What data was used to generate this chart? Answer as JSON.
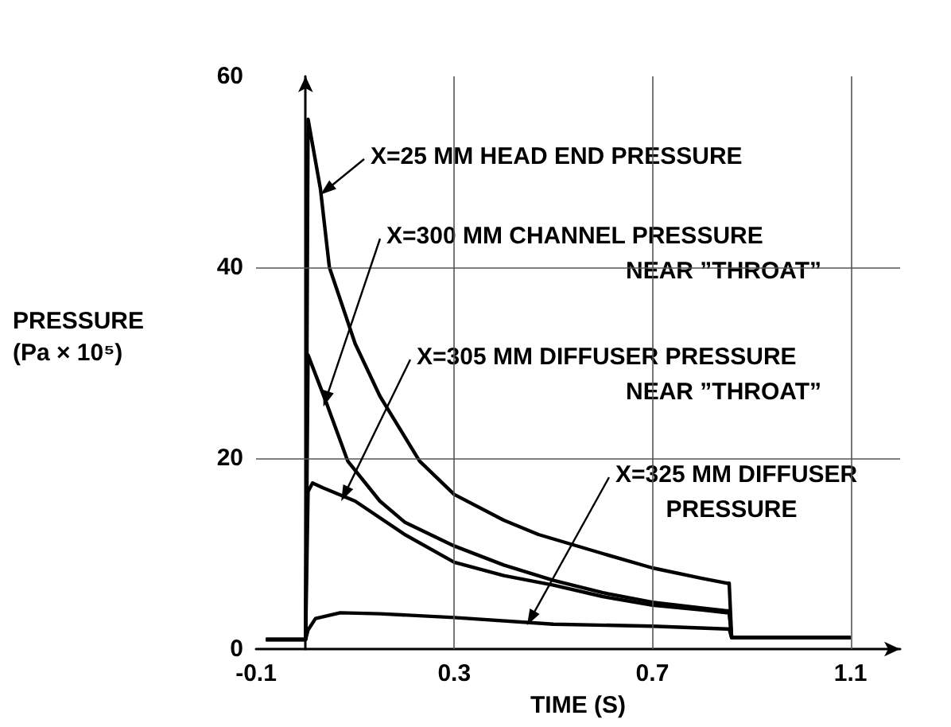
{
  "chart_data": {
    "type": "line",
    "xlabel": "TIME (S)",
    "ylabel": "PRESSURE\n(Pa × 10⁵)",
    "xlim": [
      -0.1,
      1.2
    ],
    "xticks": [
      -0.1,
      0.3,
      0.7,
      1.1
    ],
    "ylim": [
      0,
      60
    ],
    "yticks": [
      0,
      20,
      40,
      60
    ],
    "grid": true,
    "marker": "none",
    "line_style": "solid",
    "series": [
      {
        "color": "#000000",
        "x": [
          -0.08,
          0.0,
          0.005,
          0.03,
          0.048,
          0.1,
          0.15,
          0.23,
          0.3,
          0.4,
          0.47,
          0.6,
          0.7,
          0.8,
          0.85,
          0.855,
          0.86,
          1.1
        ],
        "values": [
          1.0,
          1.0,
          55.5,
          48.2,
          40,
          32,
          26.5,
          19.7,
          16.2,
          13.5,
          12,
          10,
          8.5,
          7.4,
          6.9,
          6.9,
          1.2,
          1.2
        ]
      },
      {
        "color": "#000000",
        "x": [
          -0.08,
          0.0,
          0.005,
          0.042,
          0.085,
          0.15,
          0.2,
          0.3,
          0.4,
          0.5,
          0.6,
          0.7,
          0.8,
          0.85,
          0.855,
          0.86,
          1.1
        ],
        "values": [
          1.0,
          1.0,
          30.8,
          25.8,
          19.7,
          15.5,
          13.3,
          10.8,
          8.8,
          7.2,
          5.9,
          4.9,
          4.3,
          4.0,
          4.0,
          1.2,
          1.2
        ]
      },
      {
        "color": "#000000",
        "x": [
          -0.08,
          0.0,
          0.005,
          0.014,
          0.035,
          0.1,
          0.2,
          0.3,
          0.4,
          0.5,
          0.6,
          0.7,
          0.8,
          0.85,
          0.855,
          0.86,
          1.1
        ],
        "values": [
          1.0,
          1.0,
          16.5,
          17.4,
          16.9,
          15.5,
          12,
          9.1,
          7.7,
          6.7,
          5.5,
          4.6,
          4.1,
          3.8,
          3.8,
          1.2,
          1.2
        ]
      },
      {
        "color": "#000000",
        "x": [
          -0.08,
          0.0,
          0.005,
          0.02,
          0.07,
          0.15,
          0.3,
          0.5,
          0.7,
          0.85,
          0.855,
          0.86,
          1.1
        ],
        "values": [
          1.0,
          1.0,
          2.0,
          3.2,
          3.8,
          3.7,
          3.3,
          2.6,
          2.4,
          2.1,
          2.1,
          1.2,
          1.2
        ]
      }
    ],
    "annotations": [
      {
        "text": "X=25 MM HEAD END PRESSURE",
        "x": 0.03,
        "y": 47.6
      },
      {
        "text": "X=300 MM CHANNEL PRESSURE\nNEAR ”THROAT”",
        "x": 0.036,
        "y": 25.4
      },
      {
        "text": "X=305 MM DIFFUSER PRESSURE\nNEAR ”THROAT”",
        "x": 0.072,
        "y": 15.5
      },
      {
        "text": "X=325 MM DIFFUSER\nPRESSURE",
        "x": 0.447,
        "y": 2.5
      }
    ]
  }
}
